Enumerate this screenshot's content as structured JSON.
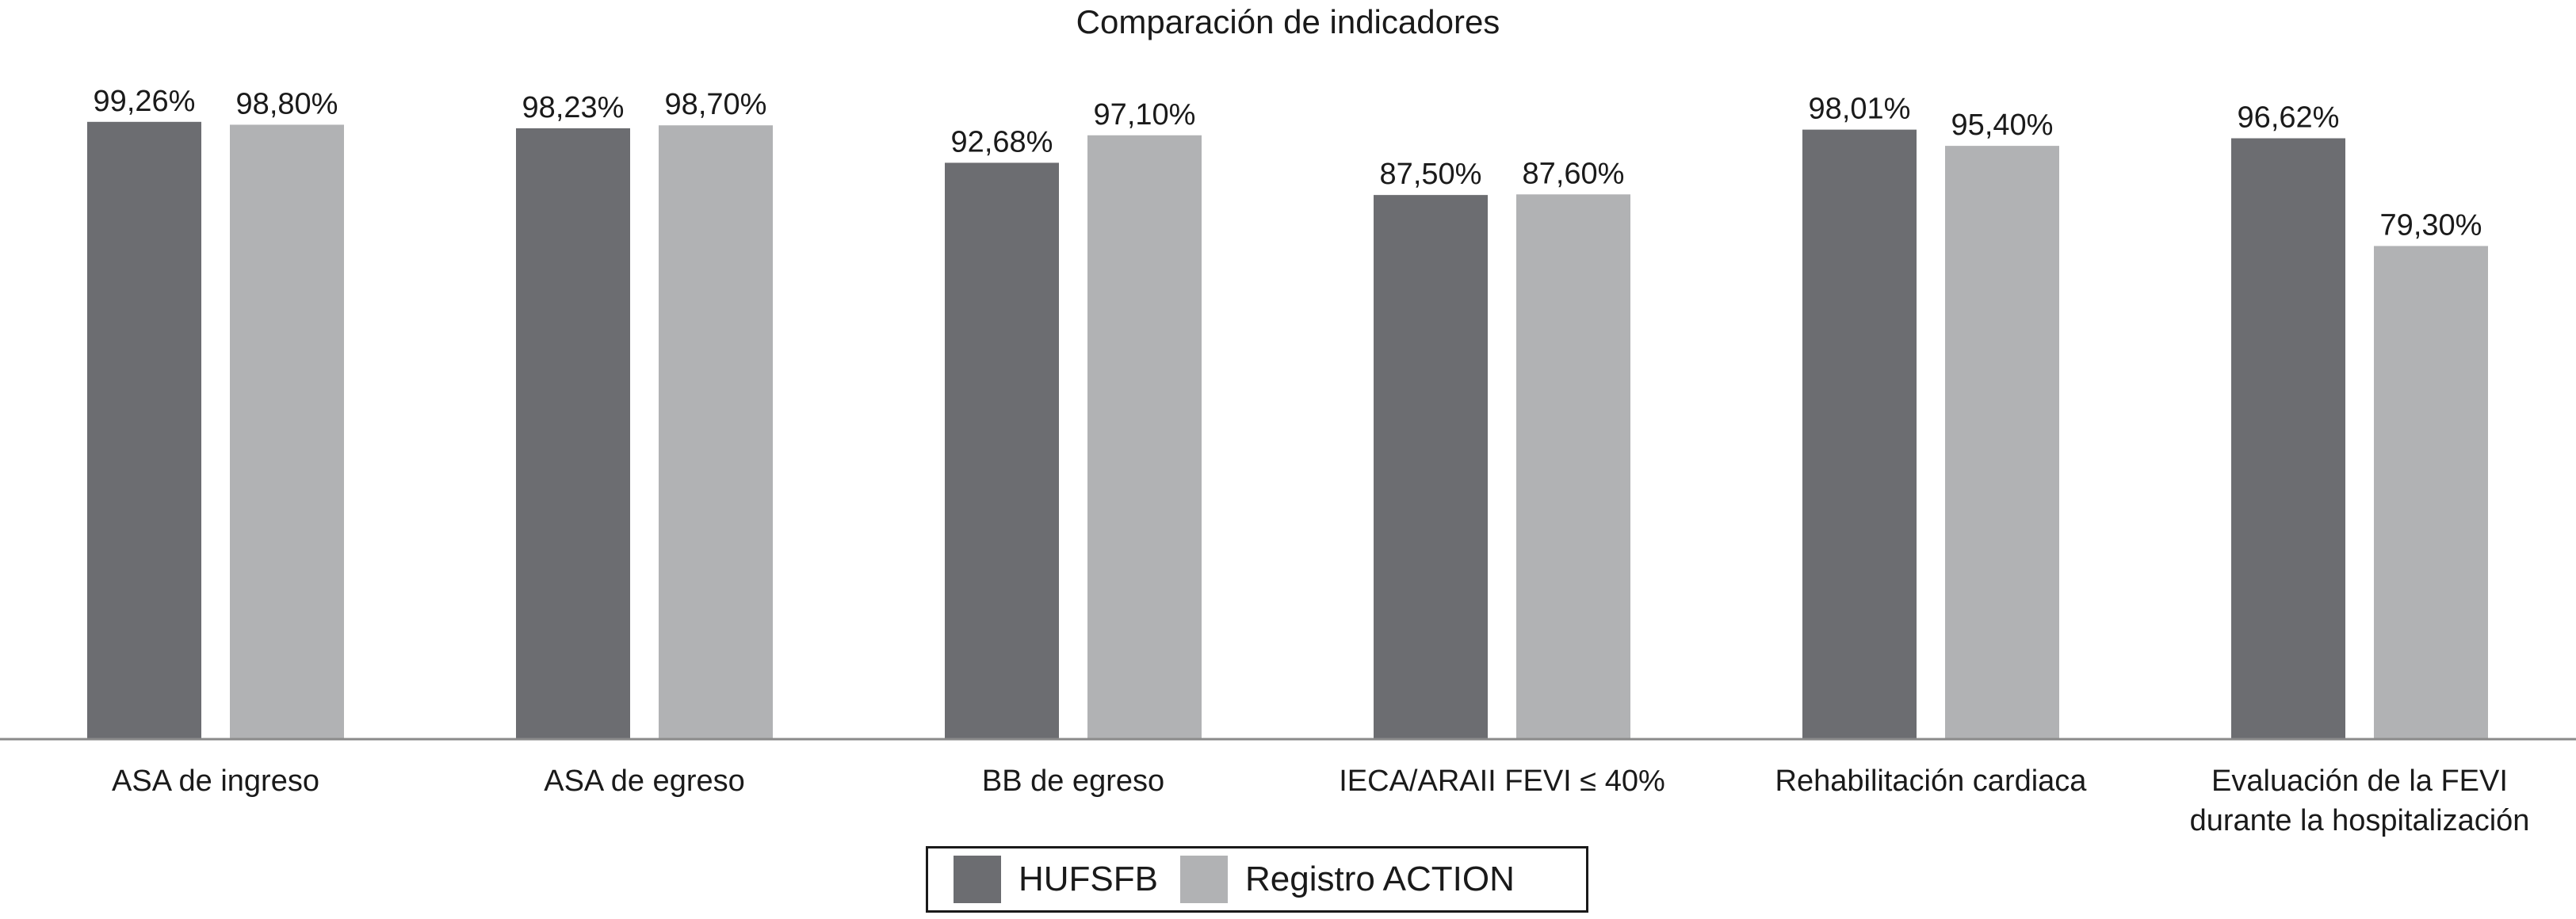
{
  "chart_data": {
    "type": "bar",
    "title": "Comparación de indicadores",
    "categories": [
      [
        "ASA de ingreso"
      ],
      [
        "ASA de egreso"
      ],
      [
        "BB de egreso"
      ],
      [
        "IECA/ARAII FEVI ≤ 40%"
      ],
      [
        "Rehabilitación cardiaca"
      ],
      [
        "Evaluación de la FEVI",
        "durante la hospitalización"
      ]
    ],
    "series": [
      {
        "name": "HUFSFB",
        "color": "#6c6d71",
        "values": [
          99.26,
          98.23,
          92.68,
          87.5,
          98.01,
          96.62
        ],
        "labels": [
          "99,26%",
          "98,23%",
          "92,68%",
          "87,50%",
          "98,01%",
          "96,62%"
        ]
      },
      {
        "name": "Registro ACTION",
        "color": "#b1b2b4",
        "values": [
          98.8,
          98.7,
          97.1,
          87.6,
          95.4,
          79.3
        ],
        "labels": [
          "98,80%",
          "98,70%",
          "97,10%",
          "87,60%",
          "95,40%",
          "79,30%"
        ]
      }
    ],
    "ylim": [
      0,
      100
    ],
    "grid": false,
    "legend_position": "bottom"
  }
}
